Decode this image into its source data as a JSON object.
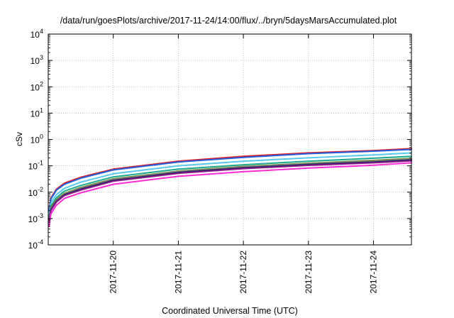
{
  "chart_data": {
    "type": "line",
    "title": "/data/run/goesPlots/archive/2017-11-24/14:00/flux/../bryn/5daysMarsAccumulated.plot",
    "xlabel": "Coordinated Universal Time (UTC)",
    "ylabel": "cSv",
    "x_scale": "time",
    "y_scale": "log",
    "xlim": [
      "2017-11-19T00:00",
      "2017-11-24T14:00"
    ],
    "ylim": [
      0.0001,
      10000
    ],
    "grid": true,
    "x_ticks": [
      "2017-11-20",
      "2017-11-21",
      "2017-11-22",
      "2017-11-23",
      "2017-11-24"
    ],
    "y_ticks": [
      {
        "base": "10",
        "exp": "-4"
      },
      {
        "base": "10",
        "exp": "-3"
      },
      {
        "base": "10",
        "exp": "-2"
      },
      {
        "base": "10",
        "exp": "-1"
      },
      {
        "base": "10",
        "exp": "0"
      },
      {
        "base": "10",
        "exp": "1"
      },
      {
        "base": "10",
        "exp": "2"
      },
      {
        "base": "10",
        "exp": "3"
      },
      {
        "base": "10",
        "exp": "4"
      }
    ],
    "x": [
      "2017-11-19T00:15",
      "2017-11-19T01:00",
      "2017-11-19T03:00",
      "2017-11-19T06:00",
      "2017-11-19T12:00",
      "2017-11-20T00:00",
      "2017-11-21T00:00",
      "2017-11-22T00:00",
      "2017-11-23T00:00",
      "2017-11-24T00:00",
      "2017-11-24T14:00"
    ],
    "series": [
      {
        "color": "#e41a1c",
        "values": [
          0.002,
          0.006,
          0.013,
          0.022,
          0.037,
          0.075,
          0.15,
          0.23,
          0.31,
          0.38,
          0.45
        ]
      },
      {
        "color": "#1f5fe0",
        "values": [
          0.0018,
          0.0055,
          0.012,
          0.02,
          0.034,
          0.07,
          0.14,
          0.21,
          0.29,
          0.36,
          0.42
        ]
      },
      {
        "color": "#56c8f0",
        "values": [
          0.0012,
          0.004,
          0.008,
          0.014,
          0.024,
          0.05,
          0.1,
          0.15,
          0.2,
          0.26,
          0.31
        ]
      },
      {
        "color": "#1aa890",
        "values": [
          0.001,
          0.003,
          0.0062,
          0.011,
          0.018,
          0.038,
          0.075,
          0.11,
          0.15,
          0.195,
          0.23
        ]
      },
      {
        "color": "#6b7c1f",
        "values": [
          0.0009,
          0.0026,
          0.0052,
          0.009,
          0.015,
          0.032,
          0.063,
          0.095,
          0.125,
          0.16,
          0.19
        ]
      },
      {
        "color": "#8e8e8e",
        "values": [
          0.0008,
          0.0024,
          0.0048,
          0.0085,
          0.014,
          0.03,
          0.06,
          0.09,
          0.12,
          0.15,
          0.18
        ]
      },
      {
        "color": "#1b1f5c",
        "values": [
          0.00075,
          0.0022,
          0.0045,
          0.008,
          0.013,
          0.028,
          0.056,
          0.084,
          0.112,
          0.14,
          0.168
        ]
      },
      {
        "color": "#8a1a8a",
        "values": [
          0.0007,
          0.002,
          0.0042,
          0.0075,
          0.012,
          0.026,
          0.052,
          0.078,
          0.104,
          0.13,
          0.155
        ]
      },
      {
        "color": "#ff2ad4",
        "values": [
          0.0005,
          0.0015,
          0.0032,
          0.0058,
          0.0095,
          0.02,
          0.04,
          0.06,
          0.082,
          0.105,
          0.13
        ]
      }
    ]
  }
}
